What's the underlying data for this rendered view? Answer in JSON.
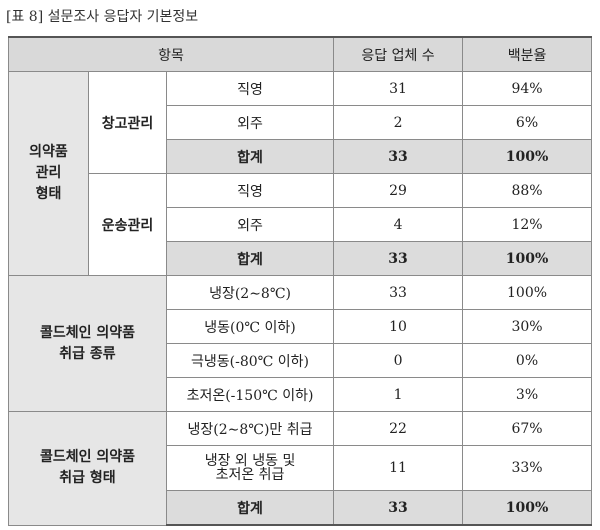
{
  "caption": "[표 8] 설문조사 응답자 기본정보",
  "header": {
    "item": "항목",
    "count": "응답 업체 수",
    "percent": "백분율"
  },
  "g1": {
    "label": "의약품\n관리\n형태",
    "storage": {
      "label": "창고관리",
      "rows": [
        {
          "type": "직영",
          "count": "31",
          "pct": "94%"
        },
        {
          "type": "외주",
          "count": "2",
          "pct": "6%"
        },
        {
          "type": "합계",
          "count": "33",
          "pct": "100%"
        }
      ]
    },
    "transport": {
      "label": "운송관리",
      "rows": [
        {
          "type": "직영",
          "count": "29",
          "pct": "88%"
        },
        {
          "type": "외주",
          "count": "4",
          "pct": "12%"
        },
        {
          "type": "합계",
          "count": "33",
          "pct": "100%"
        }
      ]
    }
  },
  "g2": {
    "label": "콜드체인 의약품\n취급 종류",
    "rows": [
      {
        "type": "냉장(2∼8℃)",
        "count": "33",
        "pct": "100%"
      },
      {
        "type": "냉동(0℃ 이하)",
        "count": "10",
        "pct": "30%"
      },
      {
        "type": "극냉동(-80℃ 이하)",
        "count": "0",
        "pct": "0%"
      },
      {
        "type": "초저온(-150℃ 이하)",
        "count": "1",
        "pct": "3%"
      }
    ]
  },
  "g3": {
    "label": "콜드체인 의약품\n취급 형태",
    "rows": [
      {
        "type": "냉장(2∼8℃)만 취급",
        "count": "22",
        "pct": "67%"
      },
      {
        "type": "냉장 외 냉동 및\n초저온 취급",
        "count": "11",
        "pct": "33%"
      },
      {
        "type": "합계",
        "count": "33",
        "pct": "100%"
      }
    ]
  }
}
